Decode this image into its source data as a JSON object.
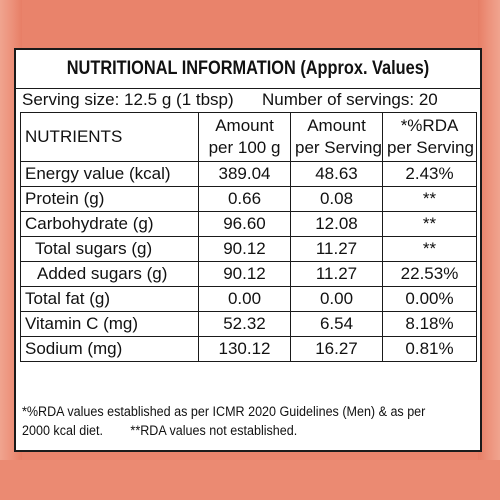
{
  "panel": {
    "title": "NUTRITIONAL INFORMATION (Approx. Values)",
    "serving_size": "Serving size: 12.5 g (1 tbsp)",
    "servings_count": "Number of servings: 20"
  },
  "table": {
    "headers": {
      "nutrients": "NUTRIENTS",
      "per100_line1": "Amount",
      "per100_line2": "per 100 g",
      "perserving_line1": "Amount",
      "perserving_line2": "per Serving",
      "rda_line1": "*%RDA",
      "rda_line2": "per Serving"
    },
    "rows": [
      {
        "name": "Energy value (kcal)",
        "per100": "389.04",
        "perserving": "48.63",
        "rda": "2.43%"
      },
      {
        "name": "Protein (g)",
        "per100": "0.66",
        "perserving": "0.08",
        "rda": "**"
      },
      {
        "name": "Carbohydrate (g)",
        "per100": "96.60",
        "perserving": "12.08",
        "rda": "**"
      },
      {
        "name": "Total sugars (g)",
        "per100": "90.12",
        "perserving": "11.27",
        "rda": "**"
      },
      {
        "name": "Added sugars (g)",
        "per100": "90.12",
        "perserving": "11.27",
        "rda": "22.53%"
      },
      {
        "name": "Total fat (g)",
        "per100": "0.00",
        "perserving": "0.00",
        "rda": "0.00%"
      },
      {
        "name": "Vitamin C (mg)",
        "per100": "52.32",
        "perserving": "6.54",
        "rda": "8.18%"
      },
      {
        "name": "Sodium (mg)",
        "per100": "130.12",
        "perserving": "16.27",
        "rda": "0.81%"
      }
    ]
  },
  "footnote": {
    "line1": "*%RDA values established as per ICMR 2020 Guidelines (Men) & as per",
    "line2_a": "2000 kcal diet.",
    "line2_b": "**RDA values not established."
  },
  "colors": {
    "background": "#e9836b",
    "panel": "#ffffff",
    "ink": "#111111"
  }
}
